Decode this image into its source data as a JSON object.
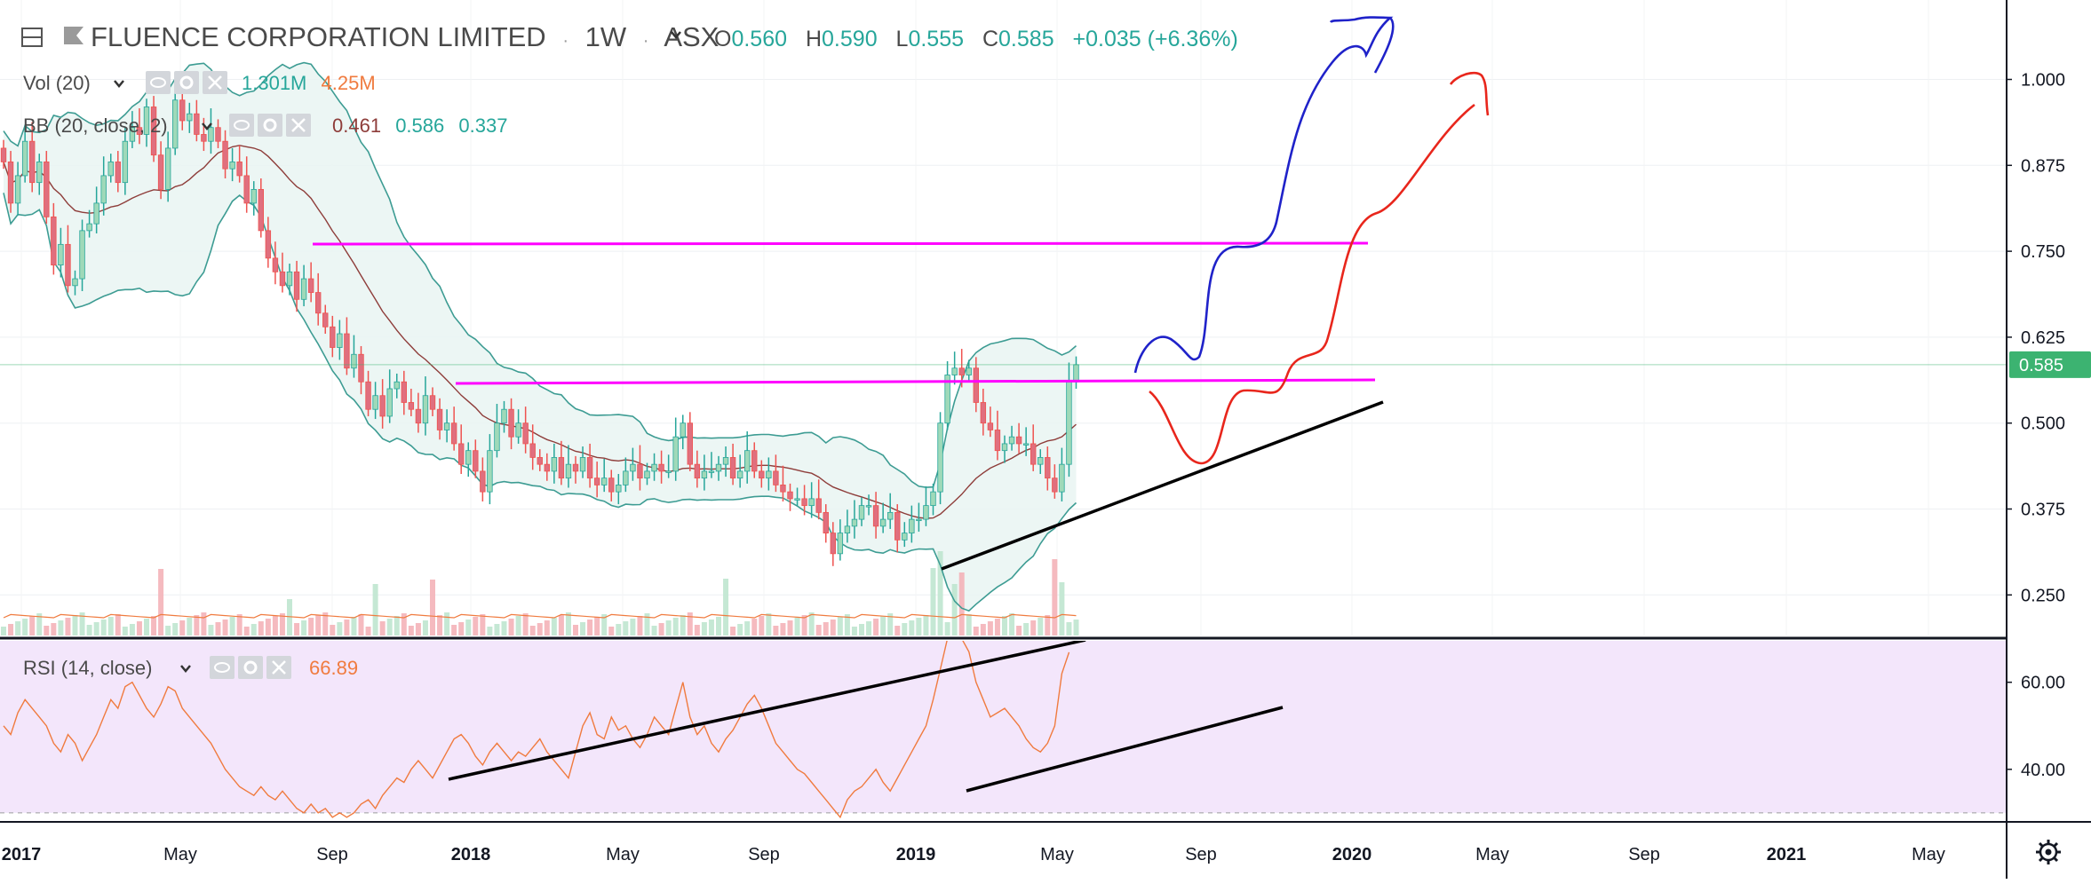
{
  "header": {
    "symbol": "FLUENCE CORPORATION LIMITED",
    "interval": "1W",
    "exchange": "ASX",
    "o_label": "O",
    "o_val": "0.560",
    "h_label": "H",
    "h_val": "0.590",
    "l_label": "L",
    "l_val": "0.555",
    "c_label": "C",
    "c_val": "0.585",
    "change": "+0.035 (+6.36%)"
  },
  "indicators": {
    "vol": {
      "label": "Vol (20)",
      "v1": "1.301M",
      "v2": "4.25M"
    },
    "bb": {
      "label": "BB (20, close, 2)",
      "v1": "0.461",
      "v2": "0.586",
      "v3": "0.337"
    },
    "rsi": {
      "label": "RSI (14, close)",
      "v1": "66.89"
    }
  },
  "colors": {
    "up": "#26a69a",
    "down": "#ef5350",
    "up_fill": "#9fd9b9",
    "down_fill": "#e06f7e",
    "bb_band": "#3d9c93",
    "bb_mid": "#8e3d3a",
    "bb_fill": "#e9f5f2",
    "rsi_line": "#f07b3f",
    "rsi_bg": "#f3e6fb",
    "level_line": "#ff00ff",
    "price_tag": "#3cb371",
    "blue_path": "#1f22c9",
    "red_path": "#e8261c",
    "trend": "#000000"
  },
  "chart_data": [
    {
      "type": "candlestick",
      "title": "FLUENCE CORPORATION LIMITED · 1W · ASX",
      "ylim": [
        0.2,
        1.2
      ],
      "yticks": [
        1.0,
        0.875,
        0.75,
        0.625,
        0.5,
        0.375,
        0.25
      ],
      "ytick_labels": [
        "1.000",
        "0.875",
        "0.750",
        "0.625",
        "0.500",
        "0.375",
        "0.250"
      ],
      "last_price": 0.585,
      "last_price_label": "0.585",
      "xtick_labels": [
        "2017",
        "May",
        "Sep",
        "2018",
        "May",
        "Sep",
        "2019",
        "May",
        "Sep",
        "2020",
        "May",
        "Sep",
        "2021",
        "May"
      ],
      "closes": [
        0.88,
        0.82,
        0.86,
        0.91,
        0.85,
        0.88,
        0.8,
        0.73,
        0.76,
        0.7,
        0.71,
        0.78,
        0.79,
        0.82,
        0.86,
        0.88,
        0.85,
        0.91,
        0.93,
        0.92,
        0.96,
        0.89,
        0.84,
        0.9,
        0.97,
        0.94,
        0.95,
        0.92,
        0.91,
        0.93,
        0.91,
        0.87,
        0.88,
        0.86,
        0.82,
        0.84,
        0.78,
        0.74,
        0.72,
        0.7,
        0.72,
        0.68,
        0.71,
        0.69,
        0.66,
        0.64,
        0.61,
        0.63,
        0.58,
        0.6,
        0.56,
        0.52,
        0.54,
        0.51,
        0.55,
        0.56,
        0.53,
        0.52,
        0.5,
        0.54,
        0.52,
        0.49,
        0.5,
        0.47,
        0.44,
        0.46,
        0.43,
        0.4,
        0.46,
        0.5,
        0.52,
        0.48,
        0.5,
        0.47,
        0.45,
        0.44,
        0.43,
        0.45,
        0.42,
        0.44,
        0.43,
        0.45,
        0.42,
        0.41,
        0.42,
        0.4,
        0.41,
        0.43,
        0.44,
        0.42,
        0.43,
        0.44,
        0.43,
        0.43,
        0.48,
        0.5,
        0.44,
        0.42,
        0.43,
        0.43,
        0.44,
        0.45,
        0.42,
        0.43,
        0.46,
        0.43,
        0.42,
        0.43,
        0.41,
        0.4,
        0.39,
        0.39,
        0.38,
        0.39,
        0.37,
        0.34,
        0.31,
        0.34,
        0.35,
        0.36,
        0.38,
        0.38,
        0.35,
        0.36,
        0.37,
        0.33,
        0.34,
        0.36,
        0.36,
        0.38,
        0.4,
        0.5,
        0.57,
        0.58,
        0.57,
        0.58,
        0.53,
        0.5,
        0.49,
        0.46,
        0.47,
        0.48,
        0.47,
        0.47,
        0.44,
        0.45,
        0.42,
        0.4,
        0.44,
        0.56,
        0.585
      ],
      "series": [
        {
          "name": "Vol (20)",
          "note": "volume histogram (relative)"
        },
        {
          "name": "BB (20, close, 2)",
          "upper_last": 0.586,
          "basis_last": 0.461,
          "lower_last": 0.337
        }
      ]
    },
    {
      "type": "line",
      "title": "RSI (14, close)",
      "ylim": [
        25,
        75
      ],
      "yticks": [
        60,
        40
      ],
      "ytick_labels": [
        "60.00",
        "40.00"
      ],
      "last_value": 66.89,
      "values": [
        50,
        48,
        53,
        56,
        54,
        52,
        50,
        46,
        44,
        48,
        46,
        42,
        45,
        48,
        52,
        56,
        54,
        59,
        60,
        57,
        54,
        52,
        55,
        59,
        58,
        54,
        52,
        50,
        48,
        46,
        43,
        40,
        38,
        36,
        35,
        34,
        36,
        34,
        33,
        35,
        33,
        31,
        30,
        32,
        30,
        31,
        29,
        30,
        29,
        30,
        32,
        33,
        31,
        34,
        36,
        38,
        37,
        40,
        42,
        40,
        38,
        41,
        44,
        47,
        48,
        46,
        43,
        41,
        44,
        46,
        44,
        42,
        44,
        43,
        45,
        47,
        44,
        42,
        40,
        38,
        44,
        50,
        53,
        48,
        47,
        52,
        49,
        50,
        47,
        45,
        48,
        52,
        50,
        48,
        54,
        60,
        52,
        48,
        50,
        46,
        44,
        47,
        49,
        52,
        55,
        57,
        54,
        50,
        46,
        44,
        42,
        40,
        39,
        37,
        35,
        33,
        31,
        29,
        33,
        35,
        36,
        38,
        40,
        37,
        35,
        38,
        41,
        44,
        47,
        50,
        56,
        63,
        70,
        71,
        70,
        67,
        60,
        56,
        52,
        53,
        54,
        52,
        50,
        47,
        45,
        44,
        46,
        50,
        62,
        66.89
      ]
    }
  ]
}
